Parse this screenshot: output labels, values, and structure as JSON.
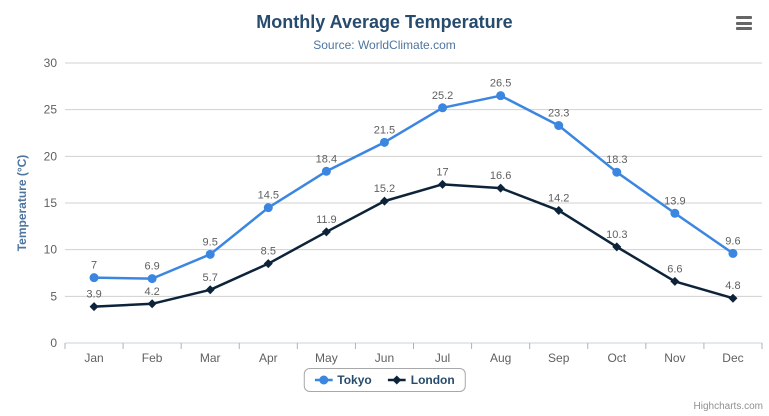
{
  "chart_data": {
    "type": "line",
    "title": "Monthly Average Temperature",
    "subtitle": "Source: WorldClimate.com",
    "categories": [
      "Jan",
      "Feb",
      "Mar",
      "Apr",
      "May",
      "Jun",
      "Jul",
      "Aug",
      "Sep",
      "Oct",
      "Nov",
      "Dec"
    ],
    "series": [
      {
        "name": "Tokyo",
        "marker": "circle",
        "color": "#3b86e0",
        "values": [
          7,
          6.9,
          9.5,
          14.5,
          18.4,
          21.5,
          25.2,
          26.5,
          23.3,
          18.3,
          13.9,
          9.6
        ]
      },
      {
        "name": "London",
        "marker": "diamond",
        "color": "#0d233a",
        "values": [
          3.9,
          4.2,
          5.7,
          8.5,
          11.9,
          15.2,
          17,
          16.6,
          14.2,
          10.3,
          6.6,
          4.8
        ]
      }
    ],
    "xlabel": "",
    "ylabel": "Temperature (°C)",
    "ylim": [
      0,
      30
    ],
    "ytick_step": 5,
    "grid": true,
    "data_labels": true,
    "legend_position": "bottom"
  },
  "credits": {
    "label": "Highcharts.com"
  },
  "export_menu": {
    "icon": "hamburger-icon"
  },
  "colors": {
    "title": "#274b6d",
    "subtitle": "#4d759e",
    "axis_title": "#4d759e",
    "tick_label": "#606060",
    "data_label": "#606060",
    "grid_line": "#d0d0d0",
    "x_axis_line": "#c6d4e2",
    "tick_mark": "#aab4be",
    "legend_text": "#274b6d",
    "credits_text": "#909090"
  }
}
